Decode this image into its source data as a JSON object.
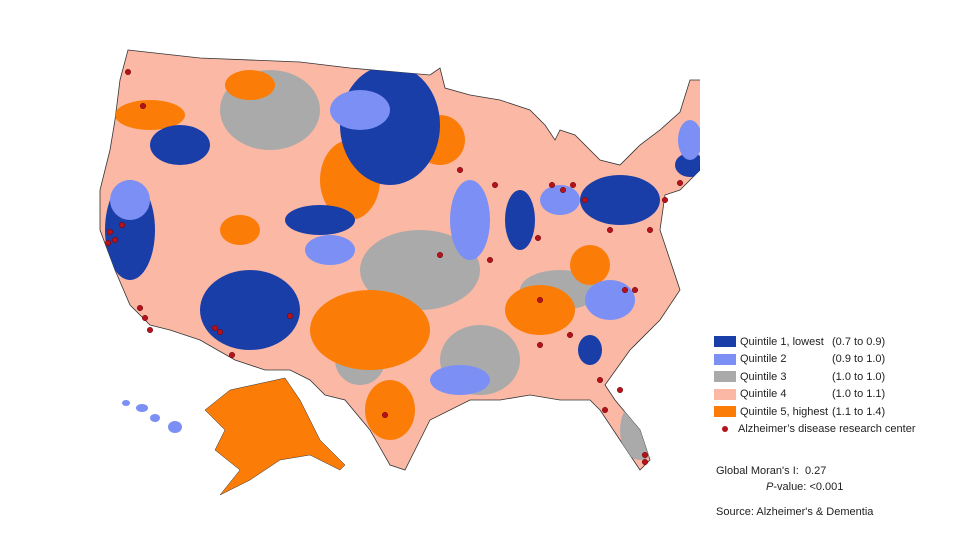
{
  "legend": {
    "items": [
      {
        "label": "Quintile 1, lowest",
        "range": "(0.7 to 0.9)",
        "color": "#1a3ea8"
      },
      {
        "label": "Quintile 2",
        "range": "(0.9 to 1.0)",
        "color": "#7b8ff5"
      },
      {
        "label": "Quintile 3",
        "range": "(1.0 to 1.0)",
        "color": "#aaaaaa"
      },
      {
        "label": "Quintile 4",
        "range": "(1.0 to 1.1)",
        "color": "#fbb9a5"
      },
      {
        "label": "Quintile 5, highest",
        "range": "(1.1 to 1.4)",
        "color": "#fb7d07"
      }
    ],
    "center_label": "Alzheimer’s disease research center",
    "center_color": "#b5121b"
  },
  "stats": {
    "moran_label": "Global Moran's I:",
    "moran_value": "0.27",
    "p_label": "P",
    "p_suffix": "-value:",
    "p_value": "<0.001"
  },
  "source": "Source: Alzheimer's & Dementia"
}
